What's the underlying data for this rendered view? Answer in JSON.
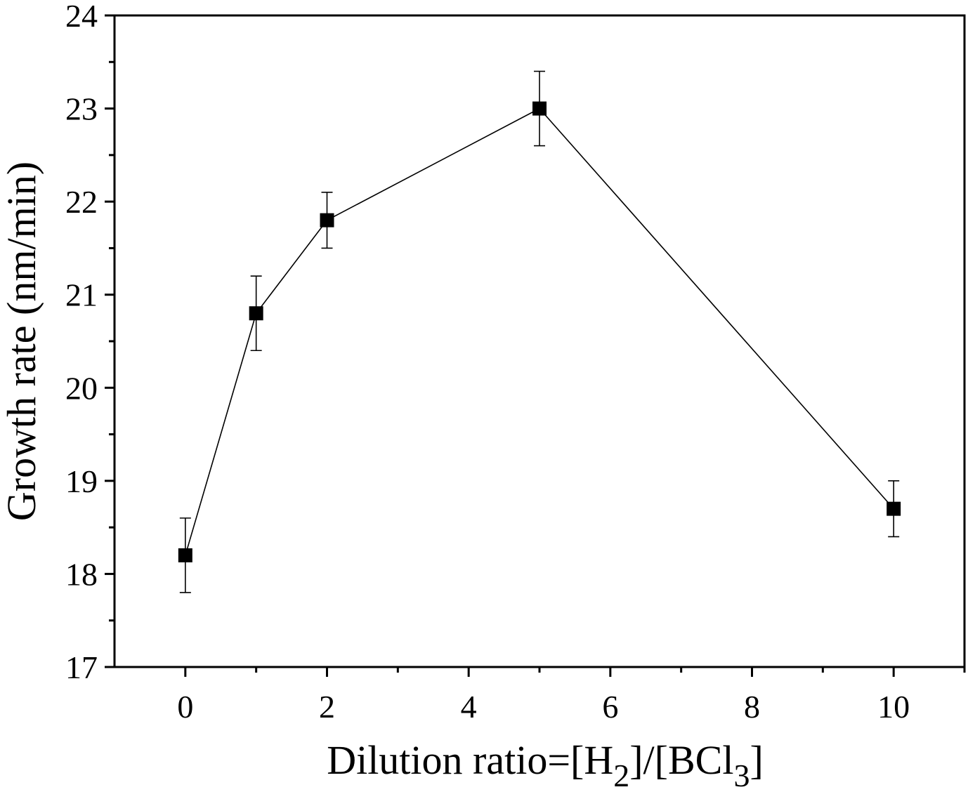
{
  "chart_data": {
    "type": "scatter",
    "xlabel": {
      "parts": [
        "Dilution ratio=[H",
        "2",
        "]/[BCl",
        "3",
        "]"
      ],
      "subscript_indices": [
        1,
        3
      ]
    },
    "ylabel": "Growth rate (nm/min)",
    "xlim": [
      -1,
      11
    ],
    "ylim": [
      17,
      24
    ],
    "x_ticks": [
      0,
      2,
      4,
      6,
      8,
      10
    ],
    "x_minor_ticks": [
      1,
      3,
      5,
      7,
      9,
      11
    ],
    "y_ticks": [
      17,
      18,
      19,
      20,
      21,
      22,
      23,
      24
    ],
    "y_minor_ticks": [
      17.5,
      18.5,
      19.5,
      20.5,
      21.5,
      22.5,
      23.5
    ],
    "x_tick_labels": [
      "0",
      "2",
      "4",
      "6",
      "8",
      "10"
    ],
    "y_tick_labels": [
      "17",
      "18",
      "19",
      "20",
      "21",
      "22",
      "23",
      "24"
    ],
    "grid": false,
    "marker": "square",
    "connected": true,
    "series": [
      {
        "x": [
          0,
          1,
          2,
          5,
          10
        ],
        "y": [
          18.2,
          20.8,
          21.8,
          23.0,
          18.7
        ],
        "error": [
          0.4,
          0.4,
          0.3,
          0.4,
          0.3
        ]
      }
    ],
    "colors": {
      "line": "#000000",
      "marker": "#000000",
      "axes": "#000000"
    }
  }
}
